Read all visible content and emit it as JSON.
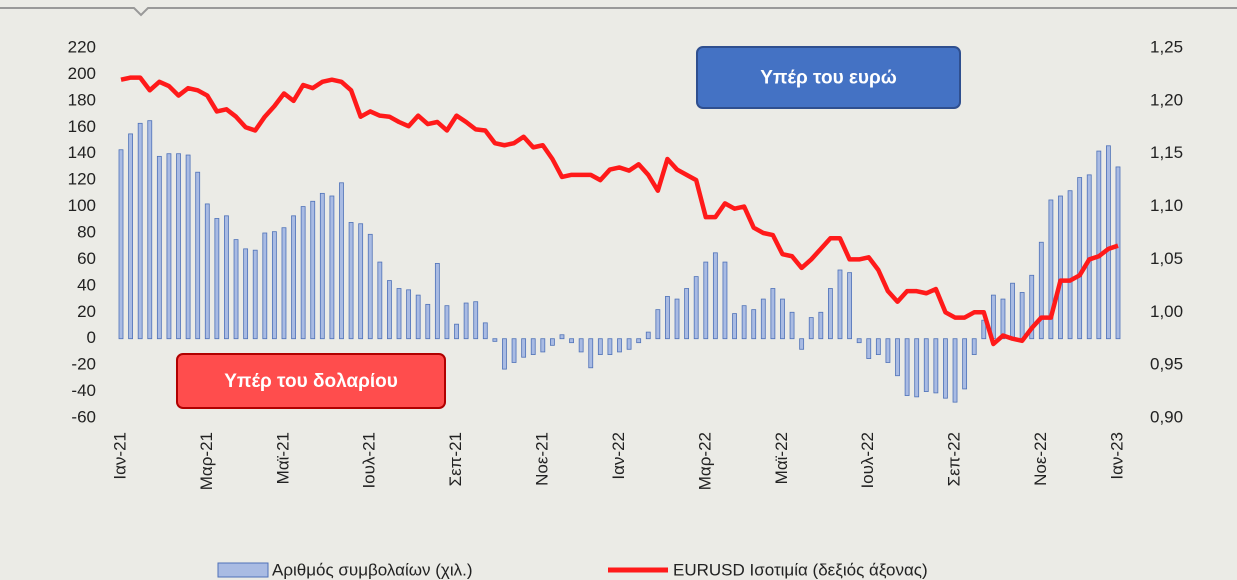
{
  "chart_data": {
    "type": "bar_line",
    "categories": [
      "Ιαν-21",
      null,
      null,
      null,
      null,
      null,
      null,
      null,
      null,
      "Μαρ-21",
      null,
      null,
      null,
      null,
      null,
      null,
      null,
      "Μαϊ-21",
      null,
      null,
      null,
      null,
      null,
      null,
      null,
      null,
      "Ιουλ-21",
      null,
      null,
      null,
      null,
      null,
      null,
      null,
      null,
      "Σεπ-21",
      null,
      null,
      null,
      null,
      null,
      null,
      null,
      null,
      "Νοε-21",
      null,
      null,
      null,
      null,
      null,
      null,
      null,
      "Ιαν-22",
      null,
      null,
      null,
      null,
      null,
      null,
      null,
      null,
      "Μαρ-22",
      null,
      null,
      null,
      null,
      null,
      null,
      null,
      "Μαϊ-22",
      null,
      null,
      null,
      null,
      null,
      null,
      null,
      null,
      "Ιουλ-22",
      null,
      null,
      null,
      null,
      null,
      null,
      null,
      null,
      "Σεπ-22",
      null,
      null,
      null,
      null,
      null,
      null,
      null,
      null,
      "Νοε-22",
      null,
      null,
      null,
      null,
      null,
      null,
      null,
      "Ιαν-23"
    ],
    "series": [
      {
        "name": "Αριθμός συμβολαίων (χιλ.)",
        "type": "bar",
        "color": "#a9bbe3",
        "values": [
          143,
          155,
          163,
          165,
          138,
          140,
          140,
          139,
          126,
          102,
          91,
          93,
          75,
          68,
          67,
          80,
          81,
          84,
          93,
          100,
          104,
          110,
          108,
          118,
          88,
          87,
          79,
          58,
          44,
          38,
          37,
          33,
          26,
          57,
          25,
          11,
          27,
          28,
          12,
          -2,
          -23,
          -18,
          -14,
          -12,
          -10,
          -5,
          3,
          -3,
          -10,
          -22,
          -12,
          -12,
          -10,
          -8,
          -3,
          5,
          22,
          32,
          30,
          38,
          47,
          58,
          65,
          58,
          19,
          25,
          22,
          30,
          38,
          30,
          20,
          -8,
          16,
          20,
          38,
          52,
          50,
          -3,
          -15,
          -12,
          -18,
          -28,
          -43,
          -44,
          -40,
          -41,
          -45,
          -48,
          -38,
          -12,
          14,
          33,
          30,
          42,
          35,
          48,
          73,
          105,
          108,
          112,
          122,
          124,
          142,
          146,
          130
        ]
      },
      {
        "name": "EURUSD Ισοτιμία (δεξιός άξονας)",
        "type": "line",
        "axis": "y2",
        "color": "#ff1a1a",
        "values": [
          1.22,
          1.222,
          1.222,
          1.21,
          1.218,
          1.214,
          1.205,
          1.212,
          1.21,
          1.205,
          1.19,
          1.192,
          1.185,
          1.175,
          1.172,
          1.185,
          1.195,
          1.207,
          1.2,
          1.215,
          1.212,
          1.218,
          1.22,
          1.218,
          1.21,
          1.185,
          1.19,
          1.186,
          1.185,
          1.18,
          1.176,
          1.186,
          1.178,
          1.18,
          1.172,
          1.186,
          1.18,
          1.173,
          1.172,
          1.16,
          1.158,
          1.16,
          1.166,
          1.156,
          1.158,
          1.145,
          1.128,
          1.13,
          1.13,
          1.13,
          1.125,
          1.135,
          1.137,
          1.134,
          1.14,
          1.13,
          1.115,
          1.145,
          1.135,
          1.13,
          1.125,
          1.09,
          1.09,
          1.103,
          1.098,
          1.1,
          1.08,
          1.075,
          1.073,
          1.055,
          1.053,
          1.042,
          1.05,
          1.06,
          1.07,
          1.07,
          1.05,
          1.05,
          1.052,
          1.04,
          1.02,
          1.01,
          1.02,
          1.02,
          1.018,
          1.022,
          1.0,
          0.995,
          0.995,
          1.0,
          1.0,
          0.97,
          0.978,
          0.975,
          0.973,
          0.985,
          0.995,
          0.995,
          1.03,
          1.03,
          1.035,
          1.05,
          1.053,
          1.06,
          1.063
        ]
      }
    ],
    "ylim": [
      -60,
      220
    ],
    "yticks": [
      220,
      200,
      180,
      160,
      140,
      120,
      100,
      80,
      60,
      40,
      20,
      0,
      -20,
      -40,
      -60
    ],
    "y2lim": [
      0.9,
      1.25
    ],
    "y2ticks": [
      {
        "value": 1.25,
        "label": "1,25"
      },
      {
        "value": 1.2,
        "label": "1,20"
      },
      {
        "value": 1.15,
        "label": "1,15"
      },
      {
        "value": 1.1,
        "label": "1,10"
      },
      {
        "value": 1.05,
        "label": "1,05"
      },
      {
        "value": 1.0,
        "label": "1,00"
      },
      {
        "value": 0.95,
        "label": "0,95"
      },
      {
        "value": 0.9,
        "label": "0,90"
      }
    ],
    "annotations": [
      {
        "text": "Υπέρ του ευρώ",
        "color": "#4472c4"
      },
      {
        "text": "Υπέρ του δολαρίου",
        "color": "#ff4d4d"
      }
    ],
    "legend": "bottom"
  }
}
